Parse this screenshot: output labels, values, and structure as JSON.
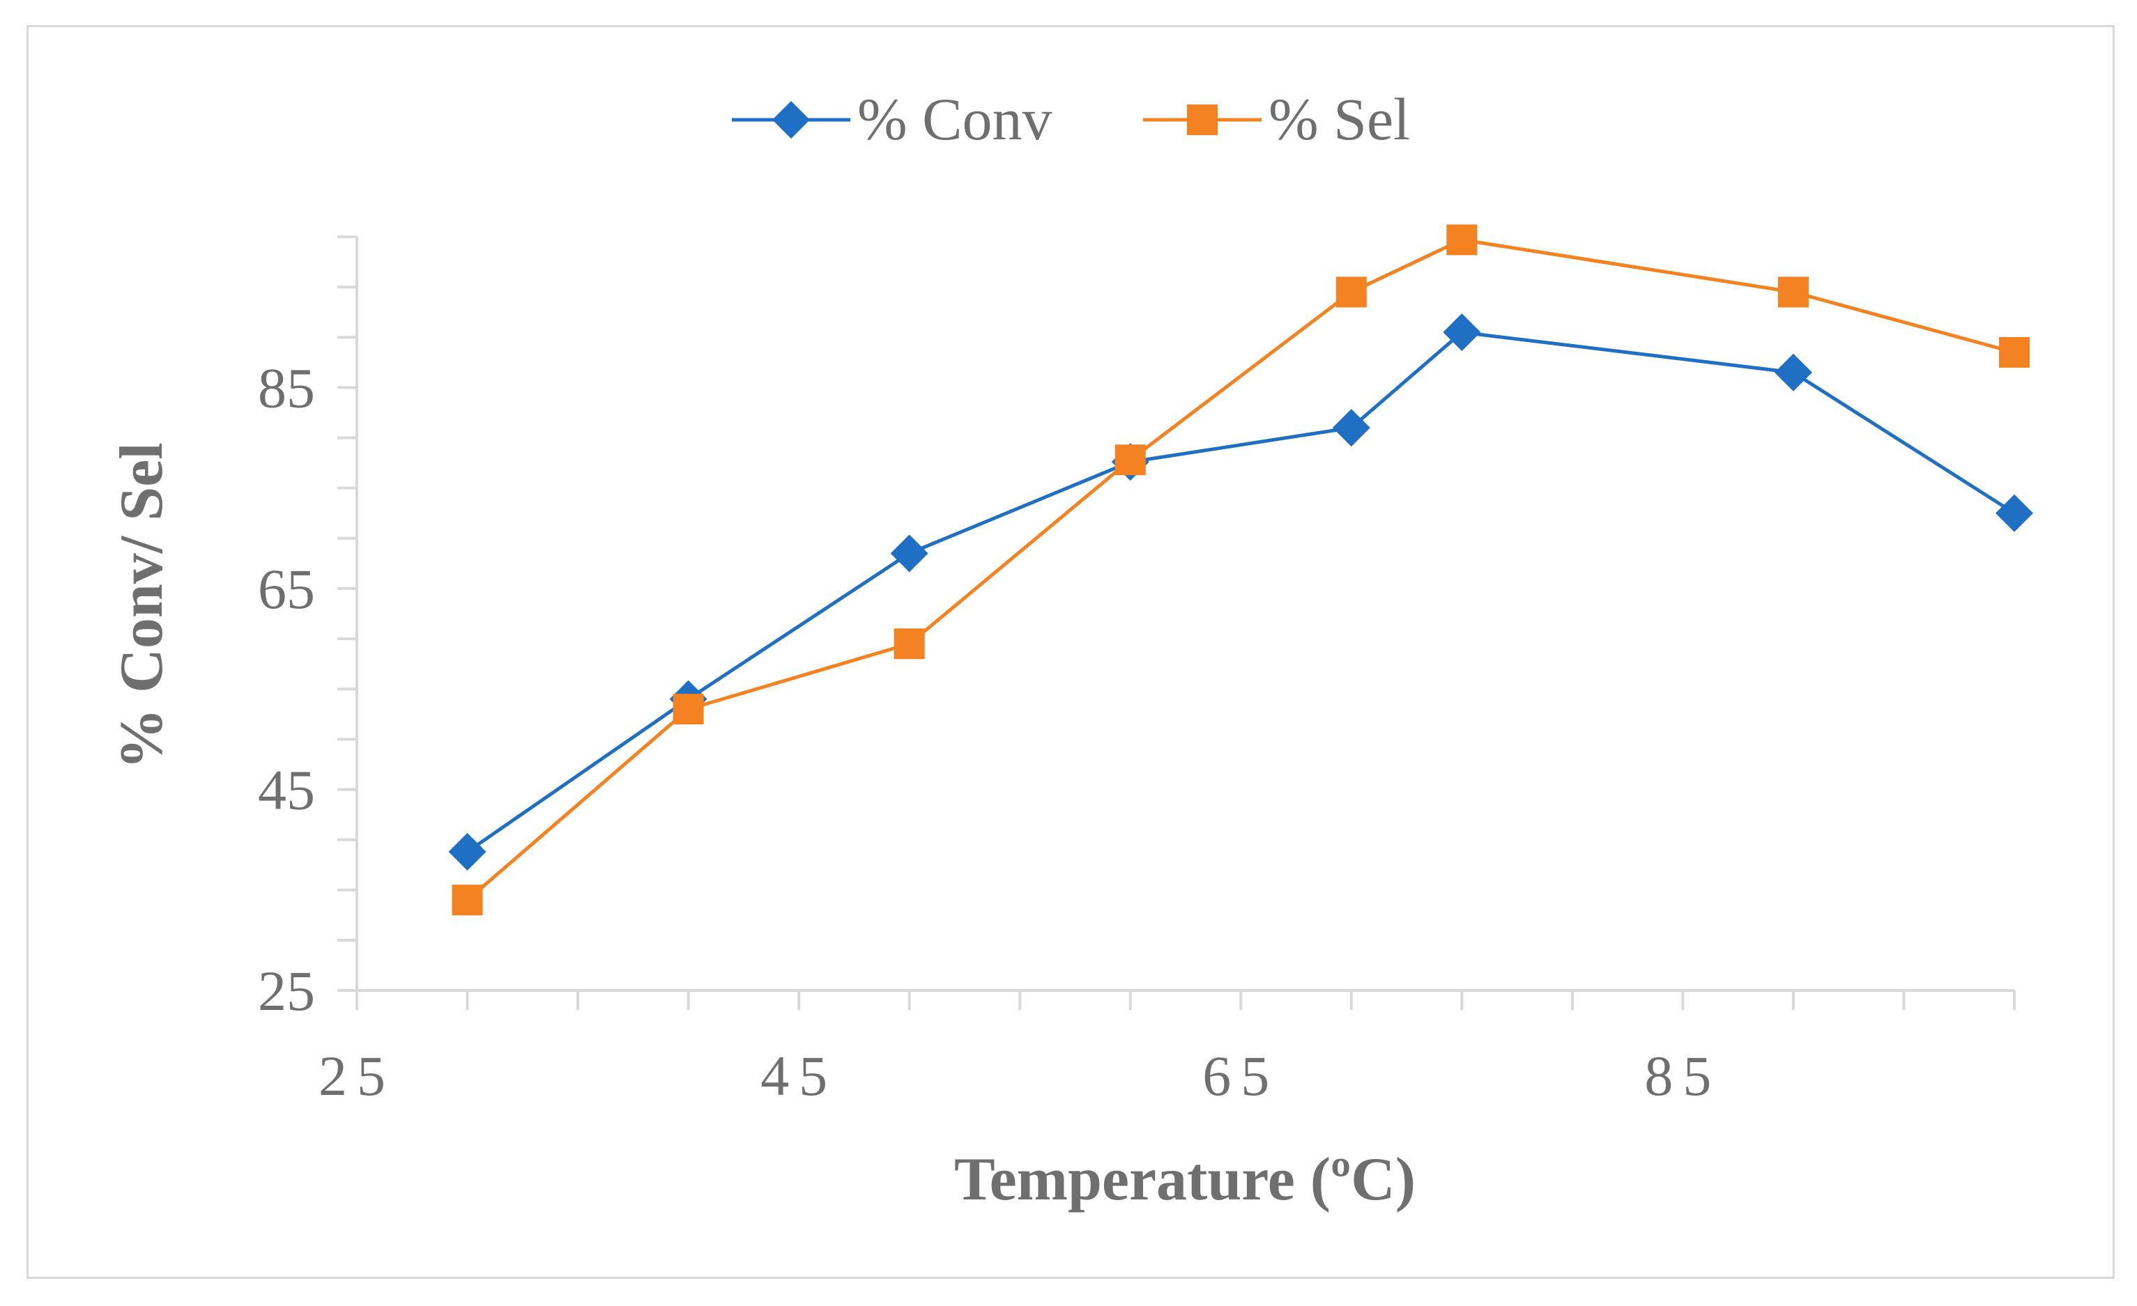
{
  "chart_data": {
    "type": "line",
    "title": "",
    "xlabel": "Temperature (ºC)",
    "ylabel": "% Conv/ Sel",
    "xlim": [
      25,
      100
    ],
    "ylim": [
      25,
      100
    ],
    "x_ticks": [
      "25",
      "45",
      "65",
      "85"
    ],
    "y_ticks": [
      "25",
      "45",
      "65",
      "85"
    ],
    "legend_position": "top-center",
    "grid": false,
    "series": [
      {
        "name": "% Conv",
        "color": "#1f6fc4",
        "marker": "diamond",
        "x": [
          30,
          40,
          50,
          60,
          70,
          75,
          90,
          100
        ],
        "y": [
          38.8,
          54,
          68.5,
          77.6,
          81,
          90.5,
          86.5,
          72.5
        ]
      },
      {
        "name": "% Sel",
        "color": "#f58220",
        "marker": "square",
        "x": [
          30,
          40,
          50,
          60,
          70,
          75,
          90,
          100
        ],
        "y": [
          34,
          53,
          59.5,
          77.8,
          94.5,
          99.7,
          94.5,
          88.5
        ]
      }
    ]
  }
}
